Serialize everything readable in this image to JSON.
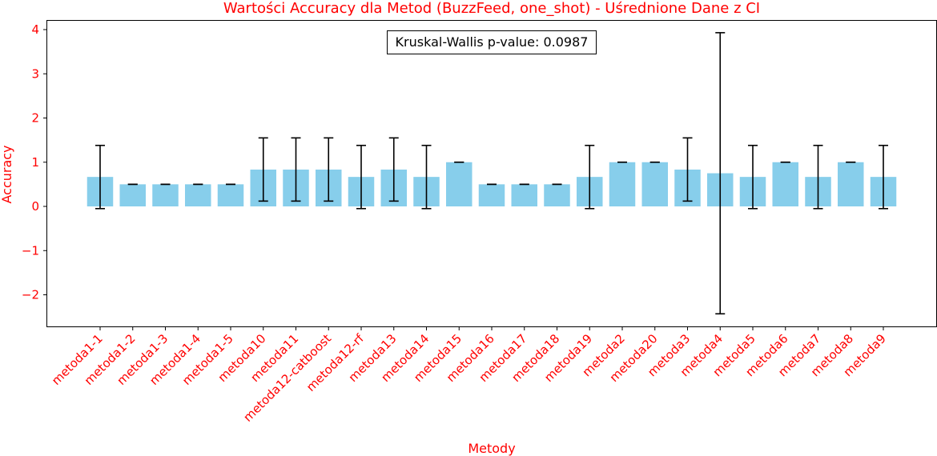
{
  "chart_data": {
    "type": "bar",
    "title": "Wartości Accuracy dla Metod (BuzzFeed, one_shot) - Uśrednione Dane z CI",
    "xlabel": "Metody",
    "ylabel": "Accuracy",
    "ylim": [
      -2.7,
      4.25
    ],
    "yticks": [
      -2,
      -1,
      0,
      1,
      2,
      3,
      4
    ],
    "ytick_labels": [
      "−2",
      "−1",
      "0",
      "1",
      "2",
      "3",
      "4"
    ],
    "categories": [
      "metoda1-1",
      "metoda1-2",
      "metoda1-3",
      "metoda1-4",
      "metoda1-5",
      "metoda10",
      "metoda11",
      "metoda12-catboost",
      "metoda12-rf",
      "metoda13",
      "metoda14",
      "metoda15",
      "metoda16",
      "metoda17",
      "metoda18",
      "metoda19",
      "metoda2",
      "metoda20",
      "metoda3",
      "metoda4",
      "metoda5",
      "metoda6",
      "metoda7",
      "metoda8",
      "metoda9"
    ],
    "values": [
      0.667,
      0.5,
      0.5,
      0.5,
      0.5,
      0.833,
      0.833,
      0.833,
      0.667,
      0.833,
      0.667,
      1.0,
      0.5,
      0.5,
      0.5,
      0.667,
      1.0,
      1.0,
      0.833,
      0.75,
      0.667,
      1.0,
      0.667,
      1.0,
      0.667
    ],
    "ci_low": [
      -0.05,
      0.5,
      0.5,
      0.5,
      0.5,
      0.12,
      0.12,
      0.12,
      -0.05,
      0.12,
      -0.05,
      1.0,
      0.5,
      0.5,
      0.5,
      -0.05,
      1.0,
      1.0,
      0.12,
      -2.43,
      -0.05,
      1.0,
      -0.05,
      1.0,
      -0.05
    ],
    "ci_high": [
      1.38,
      0.5,
      0.5,
      0.5,
      0.5,
      1.55,
      1.55,
      1.55,
      1.38,
      1.55,
      1.38,
      1.0,
      0.5,
      0.5,
      0.5,
      1.38,
      1.0,
      1.0,
      1.55,
      3.93,
      1.38,
      1.0,
      1.38,
      1.0,
      1.38
    ],
    "annotation": "Kruskal-Wallis p-value: 0.0987",
    "grid": false,
    "colors": {
      "bar": "#87ceeb",
      "error": "#000000",
      "text": "#ff0000",
      "axis": "#000000"
    }
  }
}
